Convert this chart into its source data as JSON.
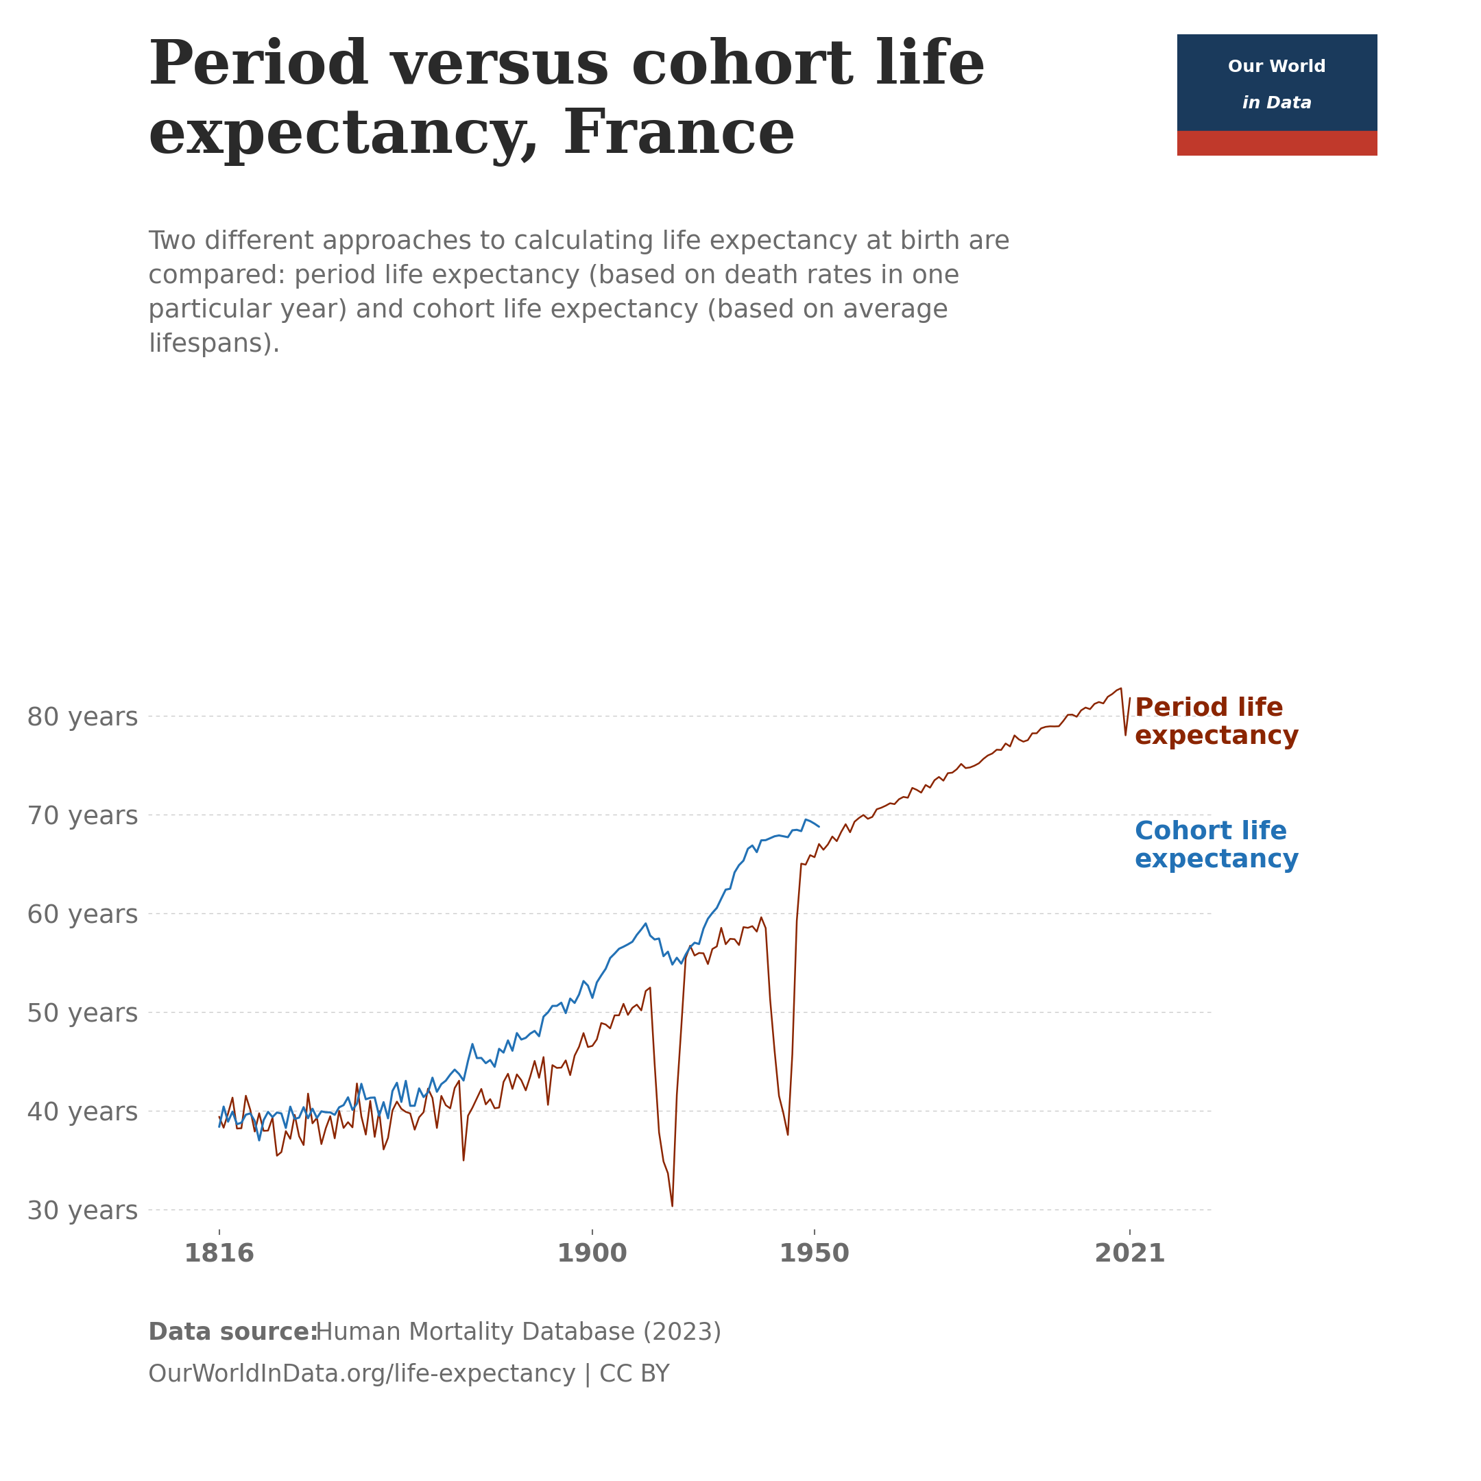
{
  "title": "Period versus cohort life\nexpectancy, France",
  "subtitle": "Two different approaches to calculating life expectancy at birth are\ncompared: period life expectancy (based on death rates in one\nparticular year) and cohort life expectancy (based on average\nlifespans).",
  "period_color": "#8B2500",
  "cohort_color": "#2271b5",
  "period_label": "Period life\nexpectancy",
  "cohort_label": "Cohort life\nexpectancy",
  "ylabel_ticks": [
    30,
    40,
    50,
    60,
    70,
    80
  ],
  "ylabel_labels": [
    "30 years",
    "40 years",
    "50 years",
    "60 years",
    "70 years",
    "80 years"
  ],
  "xticks": [
    1816,
    1900,
    1950,
    2021
  ],
  "xlim": [
    1800,
    2040
  ],
  "ylim": [
    28,
    88
  ],
  "data_source_bold": "Data source:",
  "data_source_rest": " Human Mortality Database (2023)",
  "data_url": "OurWorldInData.org/life-expectancy | CC BY",
  "background_color": "#ffffff",
  "title_color": "#2a2a2a",
  "subtitle_color": "#6b6b6b",
  "tick_label_color": "#6b6b6b",
  "grid_color": "#cccccc",
  "owid_box_color": "#1a3a5c",
  "owid_red": "#c0392b"
}
